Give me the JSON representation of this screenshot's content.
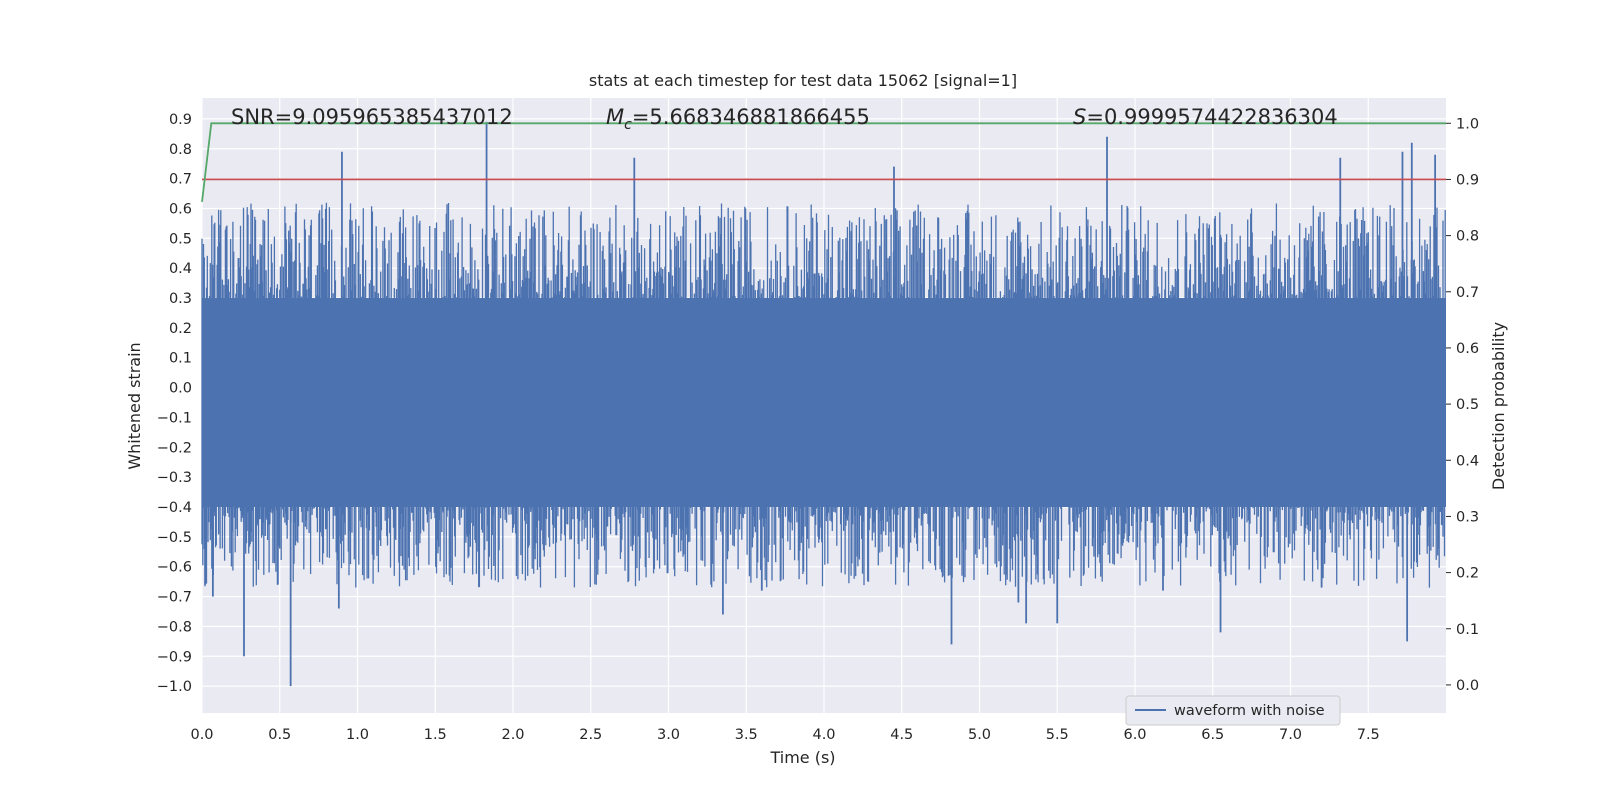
{
  "chart_data": {
    "type": "line",
    "title": "stats at each timestep for test data 15062 [signal=1]",
    "xlabel": "Time (s)",
    "ylabel_left": "Whitened strain",
    "ylabel_right": "Detection probability",
    "xlim": [
      0.0,
      8.0
    ],
    "ylim_left": [
      -1.09,
      0.97
    ],
    "ylim_right": [
      -0.05,
      1.045
    ],
    "x_ticks": [
      "0.0",
      "0.5",
      "1.0",
      "1.5",
      "2.0",
      "2.5",
      "3.0",
      "3.5",
      "4.0",
      "4.5",
      "5.0",
      "5.5",
      "6.0",
      "6.5",
      "7.0",
      "7.5"
    ],
    "y_left_ticks": [
      "0.9",
      "0.8",
      "0.7",
      "0.6",
      "0.5",
      "0.4",
      "0.3",
      "0.2",
      "0.1",
      "0.0",
      "−0.1",
      "−0.2",
      "−0.3",
      "−0.4",
      "−0.5",
      "−0.6",
      "−0.7",
      "−0.8",
      "−0.9",
      "−1.0"
    ],
    "y_right_ticks": [
      "1.0",
      "0.9",
      "0.8",
      "0.7",
      "0.6",
      "0.5",
      "0.4",
      "0.3",
      "0.2",
      "0.1",
      "0.0"
    ],
    "annotations": {
      "snr": "SNR=9.095965385437012",
      "mc_symbol": "M",
      "mc_subscript": "c",
      "mc_value": "=5.668346881866455",
      "s_symbol": "S",
      "s_value": "=0.9999574422836304"
    },
    "legend": {
      "label": "waveform with noise",
      "position": "lower-right"
    },
    "series": [
      {
        "name": "waveform with noise",
        "axis": "left",
        "color": "#4c72b0",
        "style": "dense noise, sampled at high rate",
        "envelope_typical": [
          -0.42,
          0.32
        ],
        "spikes": [
          {
            "x": 0.57,
            "y": -1.0
          },
          {
            "x": 0.27,
            "y": -0.9
          },
          {
            "x": 1.83,
            "y": 0.89
          },
          {
            "x": 0.9,
            "y": 0.79
          },
          {
            "x": 5.82,
            "y": 0.84
          },
          {
            "x": 7.78,
            "y": 0.82
          },
          {
            "x": 7.72,
            "y": 0.79
          },
          {
            "x": 7.93,
            "y": 0.78
          },
          {
            "x": 2.78,
            "y": 0.77
          },
          {
            "x": 7.32,
            "y": 0.77
          },
          {
            "x": 4.45,
            "y": 0.74
          },
          {
            "x": 4.82,
            "y": -0.86
          },
          {
            "x": 7.75,
            "y": -0.85
          },
          {
            "x": 6.55,
            "y": -0.82
          },
          {
            "x": 5.3,
            "y": -0.79
          },
          {
            "x": 5.5,
            "y": -0.79
          },
          {
            "x": 3.35,
            "y": -0.76
          },
          {
            "x": 0.88,
            "y": -0.74
          },
          {
            "x": 0.07,
            "y": -0.7
          },
          {
            "x": 3.6,
            "y": -0.68
          },
          {
            "x": 5.25,
            "y": -0.72
          },
          {
            "x": 7.2,
            "y": -0.67
          },
          {
            "x": 6.18,
            "y": -0.68
          },
          {
            "x": 0.02,
            "y": -0.66
          }
        ]
      },
      {
        "name": "threshold",
        "axis": "right",
        "color": "#c44e52",
        "x": [
          0.0,
          8.0
        ],
        "y": [
          0.9,
          0.9
        ]
      },
      {
        "name": "detection probability",
        "axis": "right",
        "color": "#55a868",
        "x": [
          0.0,
          0.06,
          8.0
        ],
        "y": [
          0.86,
          1.0,
          1.0
        ]
      }
    ]
  }
}
